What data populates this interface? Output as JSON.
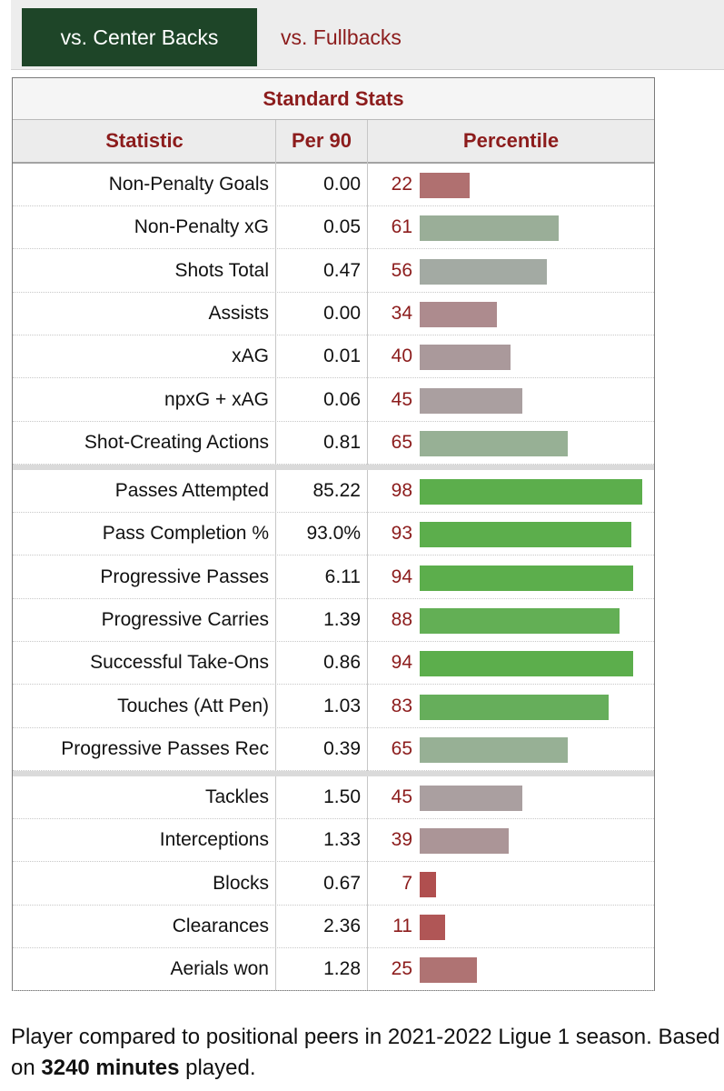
{
  "tabs": {
    "active_label": "vs. Center Backs",
    "inactive_label": "vs. Fullbacks"
  },
  "table": {
    "caption": "Standard Stats",
    "headers": {
      "statistic": "Statistic",
      "per90": "Per 90",
      "percentile": "Percentile"
    },
    "groups": [
      [
        {
          "stat": "Non-Penalty Goals",
          "per90": "0.00",
          "pct": "22",
          "fraction": 0.22,
          "color": "#b07070"
        },
        {
          "stat": "Non-Penalty xG",
          "per90": "0.05",
          "pct": "61",
          "fraction": 0.61,
          "color": "#9aae98"
        },
        {
          "stat": "Shots Total",
          "per90": "0.47",
          "pct": "56",
          "fraction": 0.56,
          "color": "#a3aaa3"
        },
        {
          "stat": "Assists",
          "per90": "0.00",
          "pct": "34",
          "fraction": 0.34,
          "color": "#ad8b8e"
        },
        {
          "stat": "xAG",
          "per90": "0.01",
          "pct": "40",
          "fraction": 0.4,
          "color": "#aa999b"
        },
        {
          "stat": "npxG + xAG",
          "per90": "0.06",
          "pct": "45",
          "fraction": 0.45,
          "color": "#aa9fa0"
        },
        {
          "stat": "Shot-Creating Actions",
          "per90": "0.81",
          "pct": "65",
          "fraction": 0.65,
          "color": "#97b095"
        }
      ],
      [
        {
          "stat": "Passes Attempted",
          "per90": "85.22",
          "pct": "98",
          "fraction": 0.98,
          "color": "#5cae4c"
        },
        {
          "stat": "Pass Completion %",
          "per90": "93.0%",
          "pct": "93",
          "fraction": 0.93,
          "color": "#5cae4c"
        },
        {
          "stat": "Progressive Passes",
          "per90": "6.11",
          "pct": "94",
          "fraction": 0.94,
          "color": "#5cae4c"
        },
        {
          "stat": "Progressive Carries",
          "per90": "1.39",
          "pct": "88",
          "fraction": 0.88,
          "color": "#63af55"
        },
        {
          "stat": "Successful Take-Ons",
          "per90": "0.86",
          "pct": "94",
          "fraction": 0.94,
          "color": "#5cae4c"
        },
        {
          "stat": "Touches (Att Pen)",
          "per90": "1.03",
          "pct": "83",
          "fraction": 0.83,
          "color": "#66ae5b"
        },
        {
          "stat": "Progressive Passes Rec",
          "per90": "0.39",
          "pct": "65",
          "fraction": 0.65,
          "color": "#97b095"
        }
      ],
      [
        {
          "stat": "Tackles",
          "per90": "1.50",
          "pct": "45",
          "fraction": 0.45,
          "color": "#aa9fa0"
        },
        {
          "stat": "Interceptions",
          "per90": "1.33",
          "pct": "39",
          "fraction": 0.39,
          "color": "#ab9597"
        },
        {
          "stat": "Blocks",
          "per90": "0.67",
          "pct": "7",
          "fraction": 0.07,
          "color": "#b04f4f"
        },
        {
          "stat": "Clearances",
          "per90": "2.36",
          "pct": "11",
          "fraction": 0.11,
          "color": "#b05656"
        },
        {
          "stat": "Aerials won",
          "per90": "1.28",
          "pct": "25",
          "fraction": 0.25,
          "color": "#af7373"
        }
      ]
    ]
  },
  "footer": {
    "text_before": "Player compared to positional peers in 2021-2022 Ligue 1 season. Based on ",
    "minutes_bold": "3240 minutes",
    "text_after": " played."
  }
}
